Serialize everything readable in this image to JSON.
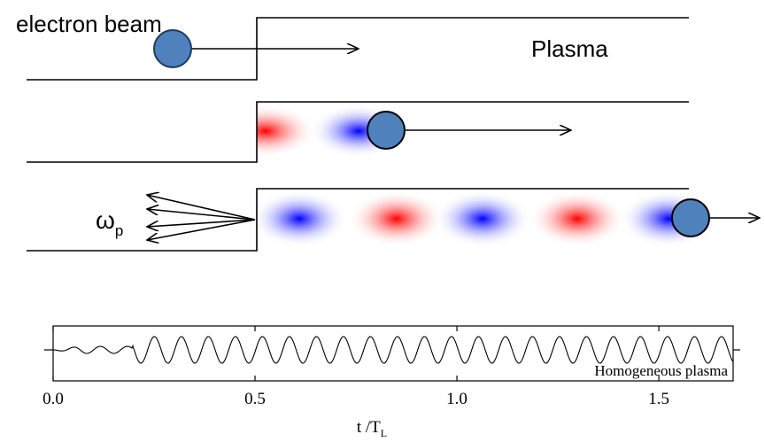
{
  "diagram": {
    "beam_label": "electron beam",
    "plasma_label": "Plasma",
    "omega": "ω",
    "omega_sub": "p"
  },
  "chart_data": {
    "type": "line",
    "annotation": "Homogeneous plasma",
    "xlabel": "t /T",
    "xlabel_sub": "L",
    "xlim": [
      0,
      1.684
    ],
    "xticks": [
      {
        "value": 0,
        "label": "0.0"
      },
      {
        "value": 0.5,
        "label": "0.5"
      },
      {
        "value": 1,
        "label": "1.0"
      },
      {
        "value": 1.5,
        "label": "1.5"
      }
    ]
  }
}
